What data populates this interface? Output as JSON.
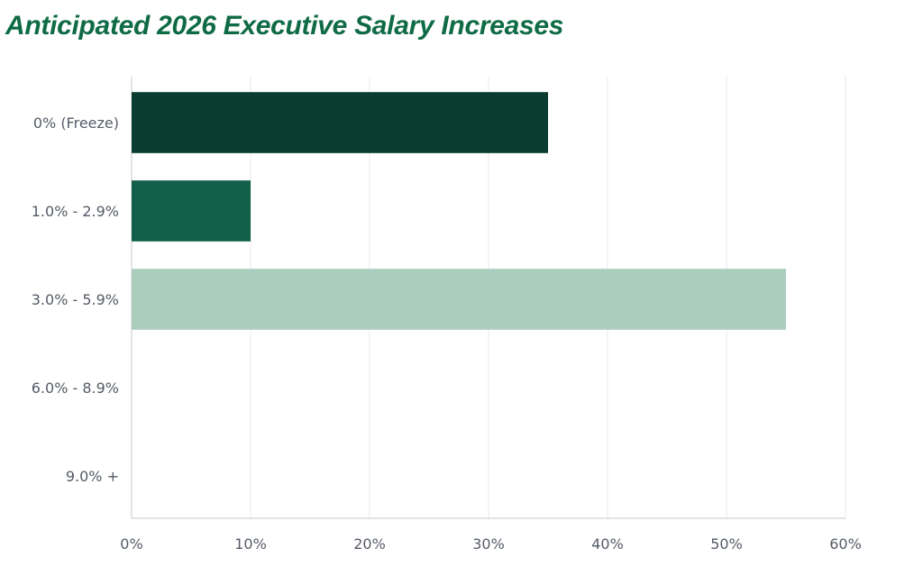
{
  "chart_data": {
    "type": "bar",
    "orientation": "horizontal",
    "title": "Anticipated 2026 Executive Salary Increases",
    "categories": [
      "0% (Freeze)",
      "1.0% - 2.9%",
      "3.0% - 5.9%",
      "6.0% - 8.9%",
      "9.0% +"
    ],
    "values": [
      35,
      10,
      55,
      0,
      0
    ],
    "bar_colors": [
      "#0a3d30",
      "#126049",
      "#accdbd",
      "#accdbd",
      "#accdbd"
    ],
    "xlim": [
      0,
      60
    ],
    "x_ticks": [
      "0%",
      "10%",
      "20%",
      "30%",
      "40%",
      "50%",
      "60%"
    ],
    "xlabel": "",
    "ylabel": "",
    "grid": "vertical",
    "legend": "none"
  },
  "colors": {
    "title": "#0f6b45",
    "gridline": "#e9e9e9",
    "axis": "#c9c9c9",
    "tick_text": "#555b66"
  }
}
